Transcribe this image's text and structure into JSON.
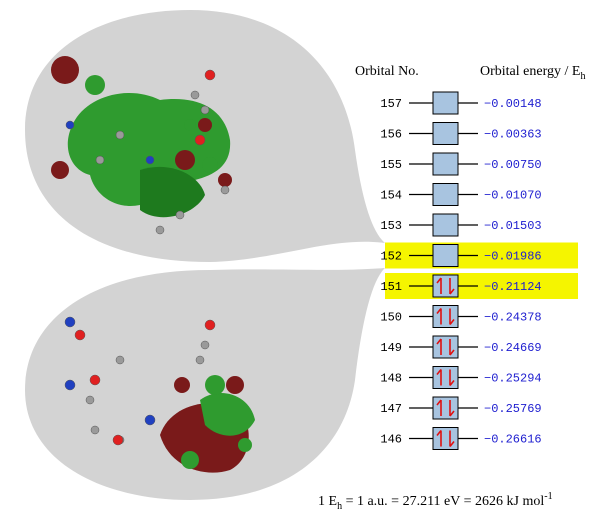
{
  "header": {
    "orbital_no": "Orbital No.",
    "orbital_energy": "Orbital energy  / E",
    "energy_unit_sub": "h"
  },
  "orbitals": [
    {
      "number": "157",
      "energy": "−0.00148",
      "occupied": false,
      "highlighted": false
    },
    {
      "number": "156",
      "energy": "−0.00363",
      "occupied": false,
      "highlighted": false
    },
    {
      "number": "155",
      "energy": "−0.00750",
      "occupied": false,
      "highlighted": false
    },
    {
      "number": "154",
      "energy": "−0.01070",
      "occupied": false,
      "highlighted": false
    },
    {
      "number": "153",
      "energy": "−0.01503",
      "occupied": false,
      "highlighted": false
    },
    {
      "number": "152",
      "energy": "−0.01986",
      "occupied": false,
      "highlighted": true
    },
    {
      "number": "151",
      "energy": "−0.21124",
      "occupied": true,
      "highlighted": true
    },
    {
      "number": "150",
      "energy": "−0.24378",
      "occupied": true,
      "highlighted": false
    },
    {
      "number": "149",
      "energy": "−0.24669",
      "occupied": true,
      "highlighted": false
    },
    {
      "number": "148",
      "energy": "−0.25294",
      "occupied": true,
      "highlighted": false
    },
    {
      "number": "147",
      "energy": "−0.25769",
      "occupied": true,
      "highlighted": false
    },
    {
      "number": "146",
      "energy": "−0.26616",
      "occupied": true,
      "highlighted": false
    }
  ],
  "footer": {
    "part1": "1 E",
    "sub": "h",
    "part2": " = 1 a.u. = 27.211 eV = 2626 kJ mol",
    "sup": "-1"
  }
}
